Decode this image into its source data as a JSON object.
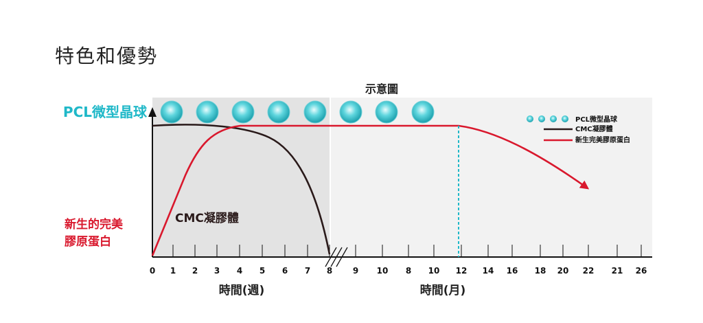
{
  "page_title": "特色和優勢",
  "diagram_title": "示意圖",
  "left_labels": {
    "pcl": "PCL微型晶球",
    "collagen_line1": "新生的完美",
    "collagen_line2": "膠原蛋白"
  },
  "cmc_label": "CMC凝膠體",
  "x_axis": {
    "weeks_label": "時間(週)",
    "months_label": "時間(月)",
    "week_ticks": [
      "0",
      "1",
      "2",
      "3",
      "4",
      "5",
      "6",
      "7",
      "8"
    ],
    "month_ticks": [
      "9",
      "10",
      "8",
      "10",
      "12",
      "14",
      "16",
      "18",
      "20",
      "22",
      "21",
      "26"
    ]
  },
  "legend": {
    "pcl": "PCL微型晶球",
    "cmc": "CMC凝膠體",
    "collagen": "新生完美膠原蛋白"
  },
  "colors": {
    "teal": "#1fb8c8",
    "red": "#d9182d",
    "dark": "#2a1a1a",
    "panel_dark": "#e3e3e3",
    "panel_light": "#f2f2f2"
  },
  "sphere_count": 8
}
